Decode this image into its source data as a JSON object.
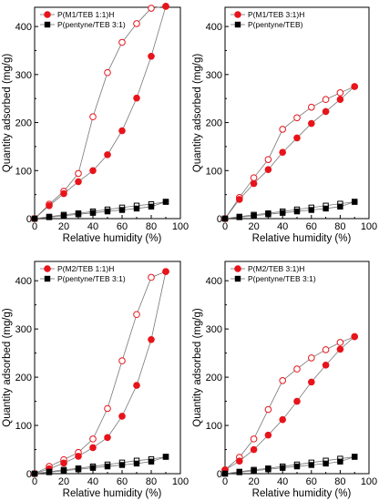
{
  "chart_data": [
    {
      "type": "scatter",
      "xlabel": "Relative humidity (%)",
      "ylabel": "Quantity adsorbed (mg/g)",
      "xlim": [
        0,
        100
      ],
      "ylim": [
        0,
        440
      ],
      "xticks": [
        0,
        20,
        40,
        60,
        80,
        100
      ],
      "yticks": [
        0,
        100,
        200,
        300,
        400
      ],
      "legend_position": "top-left",
      "series": [
        {
          "name": "P(M1/TEB 1:1)H",
          "marker": "circle",
          "color": "#e8141b",
          "line": "#777777",
          "adsorption": {
            "x": [
              0,
              10,
              20,
              30,
              40,
              50,
              60,
              70,
              80,
              90
            ],
            "y": [
              0,
              27,
              52,
              77,
              100,
              133,
              183,
              251,
              338,
              442
            ]
          },
          "desorption": {
            "x": [
              90,
              80,
              70,
              60,
              50,
              40,
              30,
              20,
              10,
              0
            ],
            "y": [
              442,
              438,
              406,
              367,
              304,
              212,
              94,
              57,
              30,
              0
            ]
          }
        },
        {
          "name": "P(pentyne/TEB 3:1)",
          "marker": "square",
          "color": "#000000",
          "line": "#777777",
          "adsorption": {
            "x": [
              0,
              10,
              20,
              30,
              40,
              50,
              60,
              70,
              80,
              90
            ],
            "y": [
              0,
              3,
              6,
              9,
              12,
              15,
              18,
              21,
              25,
              35
            ]
          },
          "desorption": {
            "x": [
              90,
              80,
              70,
              60,
              50,
              40,
              30,
              20,
              10,
              0
            ],
            "y": [
              35,
              30,
              27,
              23,
              19,
              15,
              11,
              8,
              4,
              0
            ]
          }
        }
      ]
    },
    {
      "type": "scatter",
      "xlabel": "Relative humidity (%)",
      "ylabel": "Quantity adsorbed (mg/g)",
      "xlim": [
        0,
        100
      ],
      "ylim": [
        0,
        440
      ],
      "xticks": [
        0,
        20,
        40,
        60,
        80,
        100
      ],
      "yticks": [
        0,
        100,
        200,
        300,
        400
      ],
      "legend_position": "top-left",
      "series": [
        {
          "name": "P(M1/TEB 3:1)H",
          "marker": "circle",
          "color": "#e8141b",
          "line": "#777777",
          "adsorption": {
            "x": [
              0,
              10,
              20,
              30,
              40,
              50,
              60,
              70,
              80,
              90
            ],
            "y": [
              0,
              40,
              73,
              102,
              138,
              168,
              198,
              223,
              248,
              275
            ]
          },
          "desorption": {
            "x": [
              90,
              80,
              70,
              60,
              50,
              40,
              30,
              20,
              10,
              0
            ],
            "y": [
              275,
              262,
              248,
              232,
              210,
              186,
              123,
              85,
              44,
              0
            ]
          }
        },
        {
          "name": "P(pentyne/TEB)",
          "marker": "square",
          "color": "#000000",
          "line": "#777777",
          "adsorption": {
            "x": [
              0,
              10,
              20,
              30,
              40,
              50,
              60,
              70,
              80,
              90
            ],
            "y": [
              0,
              3,
              6,
              9,
              12,
              15,
              18,
              21,
              25,
              35
            ]
          },
          "desorption": {
            "x": [
              90,
              80,
              70,
              60,
              50,
              40,
              30,
              20,
              10,
              0
            ],
            "y": [
              35,
              31,
              27,
              23,
              19,
              15,
              11,
              8,
              4,
              0
            ]
          }
        }
      ]
    },
    {
      "type": "scatter",
      "xlabel": "Relative humidity (%)",
      "ylabel": "Quantity adsorbed (mg/g)",
      "xlim": [
        0,
        100
      ],
      "ylim": [
        0,
        440
      ],
      "xticks": [
        0,
        20,
        40,
        60,
        80,
        100
      ],
      "yticks": [
        0,
        100,
        200,
        300,
        400
      ],
      "legend_position": "top-left",
      "series": [
        {
          "name": "P(M2/TEB 1:1)H",
          "marker": "circle",
          "color": "#e8141b",
          "line": "#777777",
          "adsorption": {
            "x": [
              0,
              10,
              20,
              30,
              40,
              50,
              60,
              70,
              80,
              90
            ],
            "y": [
              0,
              10,
              22,
              36,
              54,
              75,
              119,
              183,
              278,
              419
            ]
          },
          "desorption": {
            "x": [
              90,
              80,
              70,
              60,
              50,
              40,
              30,
              20,
              10,
              0
            ],
            "y": [
              419,
              407,
              330,
              234,
              135,
              72,
              44,
              29,
              15,
              0
            ]
          }
        },
        {
          "name": "P(pentyne/TEB 3:1)",
          "marker": "square",
          "color": "#000000",
          "line": "#777777",
          "adsorption": {
            "x": [
              0,
              10,
              20,
              30,
              40,
              50,
              60,
              70,
              80,
              90
            ],
            "y": [
              0,
              3,
              6,
              9,
              12,
              15,
              18,
              21,
              25,
              35
            ]
          },
          "desorption": {
            "x": [
              90,
              80,
              70,
              60,
              50,
              40,
              30,
              20,
              10,
              0
            ],
            "y": [
              35,
              30,
              27,
              23,
              19,
              15,
              11,
              8,
              4,
              0
            ]
          }
        }
      ]
    },
    {
      "type": "scatter",
      "xlabel": "Relative humidity (%)",
      "ylabel": "Quantity adsorbed (mg/g)",
      "xlim": [
        0,
        100
      ],
      "ylim": [
        0,
        440
      ],
      "xticks": [
        0,
        20,
        40,
        60,
        80,
        100
      ],
      "yticks": [
        0,
        100,
        200,
        300,
        400
      ],
      "legend_position": "top-left",
      "series": [
        {
          "name": "P(M2/TEB 3:1)H",
          "marker": "circle",
          "color": "#e8141b",
          "line": "#777777",
          "adsorption": {
            "x": [
              0,
              10,
              20,
              30,
              40,
              50,
              60,
              70,
              80,
              90
            ],
            "y": [
              8,
              26,
              50,
              80,
              112,
              150,
              190,
              225,
              258,
              284
            ]
          },
          "desorption": {
            "x": [
              90,
              80,
              70,
              60,
              50,
              40,
              30,
              20,
              10,
              0
            ],
            "y": [
              284,
              272,
              257,
              240,
              217,
              193,
              133,
              72,
              34,
              8
            ]
          }
        },
        {
          "name": "P(pentyne/TEB 3:1)",
          "marker": "square",
          "color": "#000000",
          "line": "#777777",
          "adsorption": {
            "x": [
              0,
              10,
              20,
              30,
              40,
              50,
              60,
              70,
              80,
              90
            ],
            "y": [
              0,
              3,
              6,
              9,
              12,
              15,
              18,
              21,
              25,
              35
            ]
          },
          "desorption": {
            "x": [
              90,
              80,
              70,
              60,
              50,
              40,
              30,
              20,
              10,
              0
            ],
            "y": [
              35,
              31,
              27,
              23,
              19,
              15,
              11,
              8,
              4,
              0
            ]
          }
        }
      ]
    }
  ]
}
